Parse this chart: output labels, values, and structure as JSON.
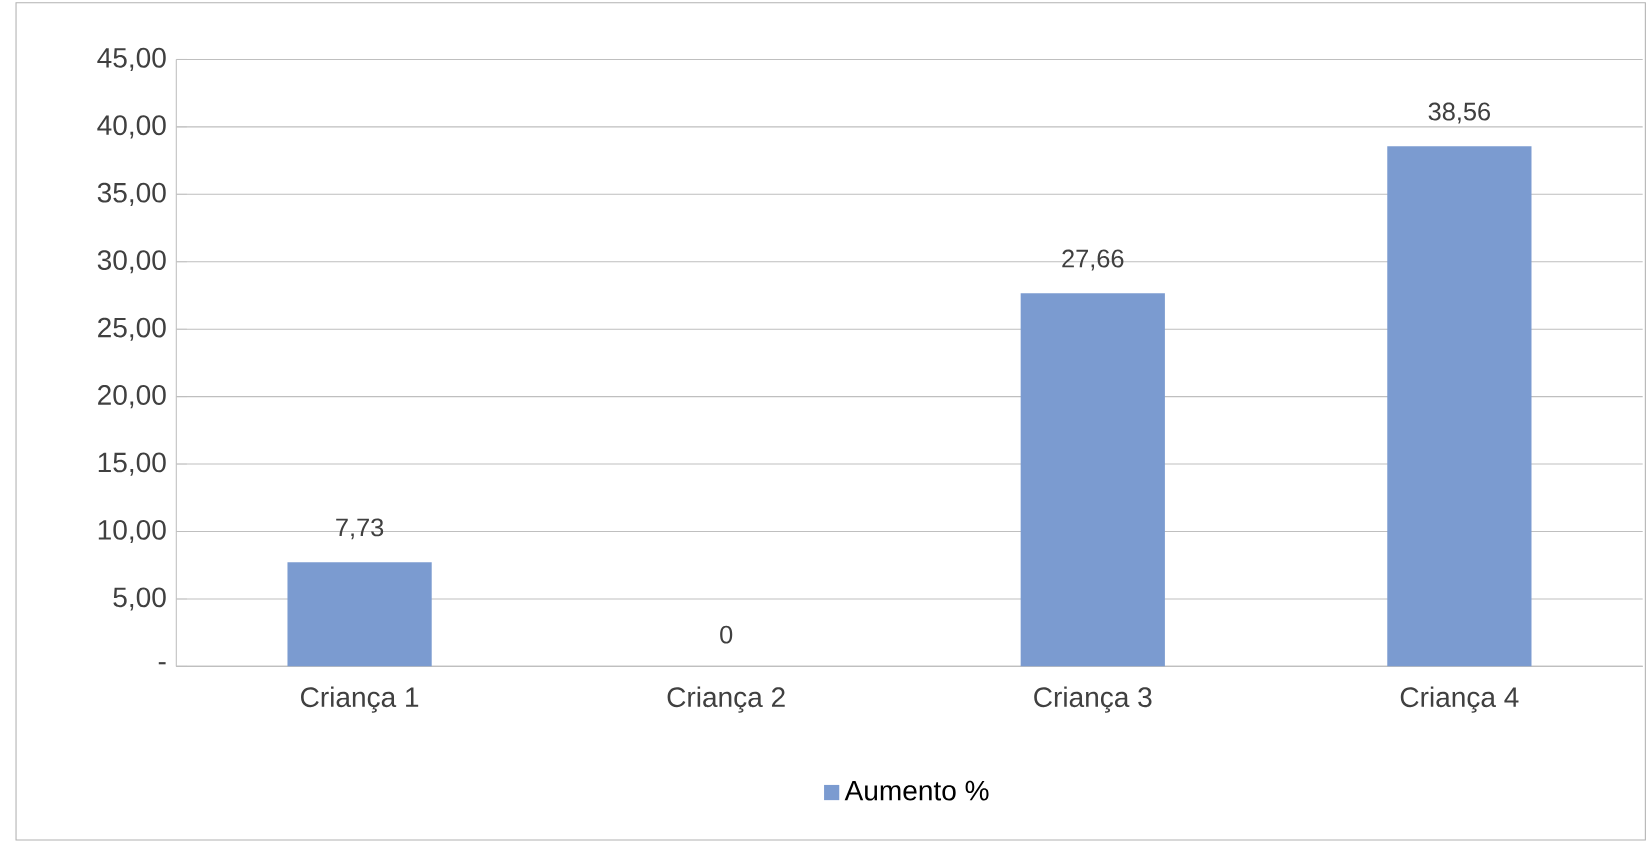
{
  "chart_data": {
    "type": "bar",
    "categories": [
      "Criança 1",
      "Criança 2",
      "Criança 3",
      "Criança 4"
    ],
    "series": [
      {
        "name": "Aumento %",
        "color": "#7b9bd0",
        "values": [
          7.73,
          0,
          27.66,
          38.56
        ],
        "value_labels": [
          "7,73",
          "0",
          "27,66",
          "38,56"
        ]
      }
    ],
    "ylim": [
      0,
      45
    ],
    "yticks": [
      {
        "value": 0,
        "label": "-"
      },
      {
        "value": 5,
        "label": "5,00"
      },
      {
        "value": 10,
        "label": "10,00"
      },
      {
        "value": 15,
        "label": "15,00"
      },
      {
        "value": 20,
        "label": "20,00"
      },
      {
        "value": 25,
        "label": "25,00"
      },
      {
        "value": 30,
        "label": "30,00"
      },
      {
        "value": 35,
        "label": "35,00"
      },
      {
        "value": 40,
        "label": "40,00"
      },
      {
        "value": 45,
        "label": "45,00"
      }
    ],
    "grid": "y",
    "legend": "bottom"
  }
}
